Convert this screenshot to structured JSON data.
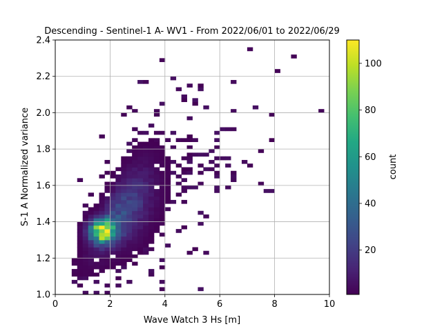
{
  "chart_data": {
    "type": "heatmap",
    "title": "Descending - Sentinel-1 A- WV1 - From 2022/06/01 to 2022/06/29",
    "xlabel": "Wave Watch 3 Hs [m]",
    "ylabel": "S-1 A Normalized variance",
    "xlim": [
      0,
      10
    ],
    "ylim": [
      1.0,
      2.4
    ],
    "xticks": [
      "0",
      "2",
      "4",
      "6",
      "8",
      "10"
    ],
    "yticks": [
      "1.0",
      "1.2",
      "1.4",
      "1.6",
      "1.8",
      "2.0",
      "2.2",
      "2.4"
    ],
    "grid": true,
    "colormap": "viridis",
    "colorbar": {
      "label": "count",
      "min": 1,
      "max": 110,
      "ticks": [
        "20",
        "40",
        "60",
        "80",
        "100"
      ]
    },
    "density_summary": {
      "peak": {
        "hs_m": 1.75,
        "normalized_variance": 1.35,
        "count": 110
      },
      "ridge": [
        {
          "hs_m": 1.0,
          "normalized_variance": 1.2
        },
        {
          "hs_m": 2.0,
          "normalized_variance": 1.4
        },
        {
          "hs_m": 3.0,
          "normalized_variance": 1.52
        },
        {
          "hs_m": 4.0,
          "normalized_variance": 1.62
        },
        {
          "hs_m": 5.0,
          "normalized_variance": 1.72
        },
        {
          "hs_m": 6.0,
          "normalized_variance": 1.78
        },
        {
          "hs_m": 7.0,
          "normalized_variance": 1.82
        }
      ]
    }
  }
}
